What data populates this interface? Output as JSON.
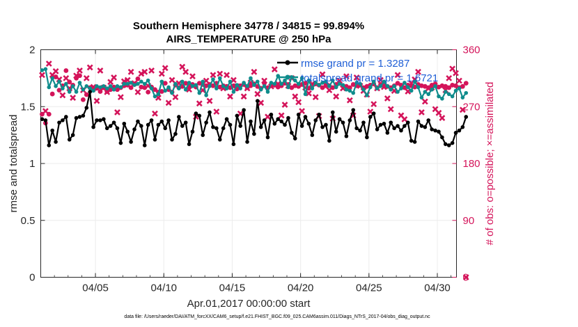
{
  "chart_data": {
    "type": "line",
    "title": "Southern Hemisphere 34778 / 34815 = 99.894%",
    "subtitle": "AIRS_TEMPERATURE @ 250 hPa",
    "xlabel": "Apr.01,2017 00:00:00 start",
    "ylabel": "rmse and totalspread",
    "ylabel_right": "# of obs: o=possible; ×=assimilated",
    "footer": "data file: /Users/raeder/DAI/ATM_forcXX/CAM6_setup/f.e21.FHIST_BGC.f09_025.CAM6assim.011/Diags_NTrS_2017-04/obs_diag_output.nc",
    "xlim": [
      1,
      31.4
    ],
    "ylim": [
      0,
      2
    ],
    "ylim_right": [
      0,
      360
    ],
    "x_ticks": [
      5,
      10,
      15,
      20,
      25,
      30
    ],
    "x_tick_labels": [
      "04/05",
      "04/10",
      "04/15",
      "04/20",
      "04/25",
      "04/30"
    ],
    "y_ticks": [
      0,
      0.5,
      1,
      1.5,
      2
    ],
    "y_tick_labels": [
      "0",
      "0.5",
      "1",
      "1.5",
      "2"
    ],
    "y_right_ticks": [
      0,
      90,
      180,
      270,
      360
    ],
    "y_right_tick_labels": [
      "0",
      "90",
      "180",
      "270",
      "360"
    ],
    "legend": [
      "rmse grand pr = 1.3287",
      "totalspread grand pr = 1.6721"
    ],
    "colors": {
      "rmse": "#000000",
      "spread": "#0f8c8c",
      "obs": "#d4145a",
      "legend_text": "#1f5fd6"
    },
    "x_start": 1.1,
    "x_step": 0.25,
    "series": [
      {
        "name": "rmse",
        "values": [
          1.39,
          1.38,
          1.16,
          1.29,
          1.19,
          1.36,
          1.38,
          1.41,
          1.21,
          1.25,
          1.4,
          1.41,
          1.42,
          1.49,
          1.63,
          1.32,
          1.38,
          1.38,
          1.39,
          1.31,
          1.33,
          1.36,
          1.31,
          1.18,
          1.35,
          1.28,
          1.19,
          1.3,
          1.37,
          1.33,
          1.16,
          1.34,
          1.38,
          1.21,
          1.34,
          1.37,
          1.31,
          1.38,
          1.21,
          1.26,
          1.41,
          1.33,
          1.36,
          1.17,
          1.28,
          1.44,
          1.42,
          1.25,
          1.36,
          1.45,
          1.32,
          1.31,
          1.21,
          1.31,
          1.39,
          1.34,
          1.17,
          1.42,
          1.33,
          1.47,
          1.19,
          1.37,
          1.26,
          1.55,
          1.32,
          1.38,
          1.23,
          1.43,
          1.35,
          1.39,
          1.37,
          1.34,
          1.4,
          1.27,
          1.22,
          1.43,
          1.33,
          1.41,
          1.35,
          1.25,
          1.38,
          1.43,
          1.32,
          1.34,
          1.2,
          1.45,
          1.28,
          1.39,
          1.36,
          1.24,
          1.38,
          1.47,
          1.31,
          1.29,
          1.36,
          1.23,
          1.41,
          1.44,
          1.3,
          1.34,
          1.35,
          1.27,
          1.36,
          1.31,
          1.33,
          1.29,
          1.33,
          1.36,
          1.2,
          1.19,
          1.37,
          1.33,
          1.32,
          1.38,
          1.3,
          1.29,
          1.28,
          1.23,
          1.17,
          1.16,
          1.18,
          1.27,
          1.29,
          1.32,
          1.41
        ]
      },
      {
        "name": "totalspread",
        "values": [
          1.82,
          1.83,
          1.67,
          1.75,
          1.68,
          1.72,
          1.66,
          1.7,
          1.63,
          1.68,
          1.63,
          1.71,
          1.65,
          1.68,
          1.66,
          1.64,
          1.68,
          1.67,
          1.68,
          1.66,
          1.68,
          1.65,
          1.68,
          1.67,
          1.7,
          1.7,
          1.71,
          1.69,
          1.7,
          1.72,
          1.7,
          1.73,
          1.66,
          1.59,
          1.61,
          1.72,
          1.64,
          1.67,
          1.62,
          1.7,
          1.66,
          1.72,
          1.65,
          1.71,
          1.68,
          1.69,
          1.62,
          1.72,
          1.6,
          1.68,
          1.74,
          1.66,
          1.75,
          1.68,
          1.66,
          1.72,
          1.63,
          1.69,
          1.66,
          1.71,
          1.68,
          1.75,
          1.69,
          1.72,
          1.65,
          1.68,
          1.63,
          1.71,
          1.7,
          1.77,
          1.7,
          1.73,
          1.67,
          1.76,
          1.73,
          1.7,
          1.75,
          1.61,
          1.73,
          1.66,
          1.71,
          1.69,
          1.71,
          1.72,
          1.68,
          1.73,
          1.67,
          1.7,
          1.69,
          1.65,
          1.64,
          1.62,
          1.71,
          1.7,
          1.65,
          1.6,
          1.67,
          1.72,
          1.66,
          1.68,
          1.72,
          1.68,
          1.65,
          1.68,
          1.63,
          1.66,
          1.71,
          1.67,
          1.64,
          1.72,
          1.67,
          1.58,
          1.63,
          1.61,
          1.65,
          1.68,
          1.59,
          1.57,
          1.63,
          1.61,
          1.59,
          1.64,
          1.66,
          1.58,
          1.62
        ]
      },
      {
        "name": "obs possible",
        "values": [
          258,
          244,
          258,
          290,
          317,
          296,
          303,
          327,
          309,
          304,
          315,
          319,
          281,
          289,
          300,
          296,
          299,
          294,
          300,
          294,
          297,
          301,
          297,
          300,
          303,
          304,
          300,
          306,
          314,
          301,
          300,
          293,
          301,
          297,
          293,
          294,
          307,
          297,
          293,
          304,
          300,
          302,
          307,
          302,
          305,
          301,
          307,
          305,
          303,
          305,
          303,
          307,
          301,
          303,
          302,
          300,
          303,
          298,
          303,
          305,
          300,
          303,
          306,
          302,
          299,
          307,
          300,
          303,
          304,
          301,
          303,
          307,
          305,
          300,
          303,
          302,
          305,
          307,
          299,
          303,
          306,
          304,
          300,
          303,
          303,
          300,
          305,
          307,
          303,
          302,
          300,
          305,
          303,
          304,
          300,
          302,
          304,
          306,
          300,
          305,
          303,
          302,
          300,
          303,
          307,
          304,
          300,
          304,
          303,
          301,
          305,
          303,
          302,
          300,
          304,
          306,
          301,
          303,
          302,
          300,
          304,
          303,
          300,
          302,
          307
        ]
      },
      {
        "name": "obs assimilated",
        "values": [
          320,
          263,
          338,
          320,
          326,
          313,
          288,
          315,
          299,
          284,
          319,
          327,
          296,
          315,
          332,
          301,
          279,
          327,
          300,
          293,
          309,
          316,
          261,
          285,
          310,
          312,
          325,
          307,
          293,
          322,
          325,
          303,
          327,
          259,
          284,
          322,
          331,
          276,
          312,
          285,
          307,
          333,
          325,
          297,
          318,
          254,
          275,
          296,
          311,
          279,
          320,
          262,
          322,
          299,
          320,
          286,
          312,
          302,
          259,
          286,
          299,
          308,
          325,
          290,
          276,
          311,
          254,
          302,
          329,
          306,
          256,
          273,
          303,
          315,
          286,
          277,
          263,
          300,
          291,
          306,
          285,
          255,
          321,
          304,
          296,
          251,
          286,
          311,
          299,
          318,
          280,
          256,
          316,
          303,
          295,
          289,
          262,
          274,
          299,
          312,
          301,
          283,
          266,
          295,
          320,
          256,
          250,
          294,
          307,
          313,
          325,
          261,
          278,
          299,
          300,
          266,
          260,
          252,
          296,
          315,
          330,
          323,
          311,
          265,
          0
        ]
      }
    ]
  }
}
